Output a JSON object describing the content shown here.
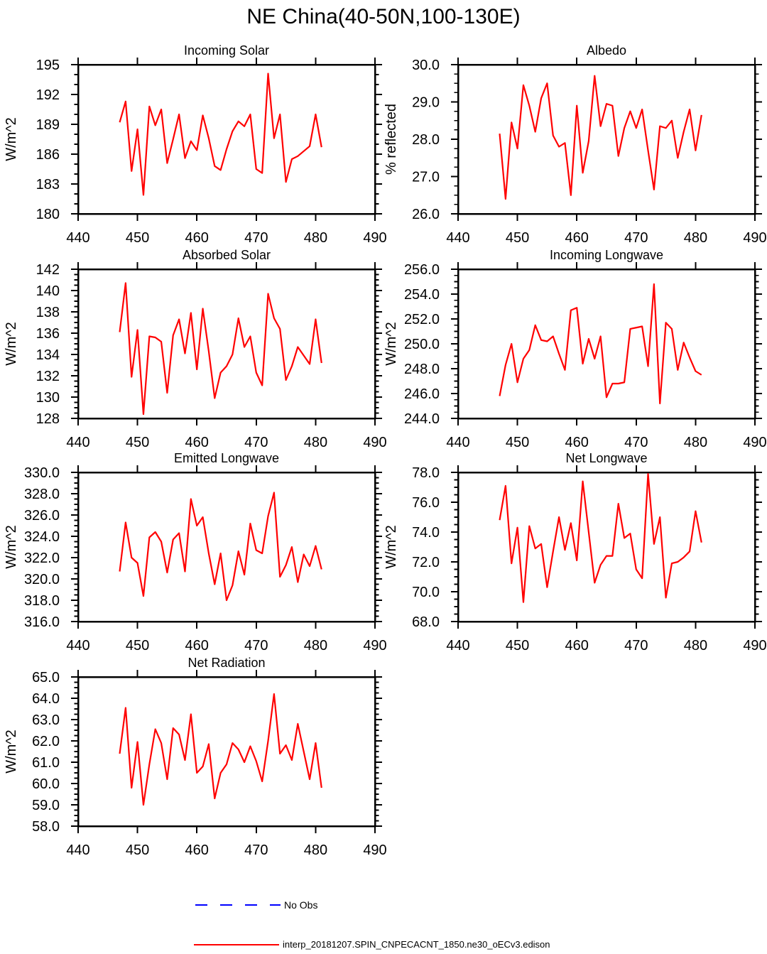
{
  "title": "NE China(40-50N,100-130E)",
  "colors": {
    "series": "#ff0000",
    "no_obs": "#0000ff",
    "axis": "#000000",
    "background": "#ffffff"
  },
  "legend": {
    "items": [
      {
        "label": "No Obs",
        "color": "#0000ff",
        "line_style": "dashed"
      },
      {
        "label": "interp_20181207.SPIN_CNPECACNT_1850.ne30_oECv3.edison",
        "color": "#ff0000",
        "line_style": "solid"
      }
    ]
  },
  "chart_data": [
    {
      "type": "line",
      "title": "Incoming Solar",
      "ylabel": "W/m^2",
      "ylim": [
        180,
        195
      ],
      "ytick_major": 3,
      "ytick_minor": 1,
      "ytick_decimals": 0,
      "xlim": [
        440,
        490
      ],
      "xticks": [
        440,
        450,
        460,
        470,
        480,
        490
      ],
      "x_start": 447,
      "x_step": 1,
      "values": [
        189.2,
        191.3,
        184.3,
        188.5,
        181.9,
        190.8,
        188.9,
        190.5,
        185.1,
        187.5,
        190.0,
        185.6,
        187.3,
        186.4,
        189.9,
        187.6,
        184.8,
        184.4,
        186.5,
        188.3,
        189.3,
        188.8,
        190.0,
        184.5,
        184.1,
        194.1,
        187.6,
        190.0,
        183.2,
        185.5,
        185.8,
        186.3,
        186.8,
        190.0,
        186.7
      ]
    },
    {
      "type": "line",
      "title": "Albedo",
      "ylabel": "% reflected",
      "ylim": [
        26.0,
        30.0
      ],
      "ytick_major": 1.0,
      "ytick_minor": 0.25,
      "ytick_decimals": 1,
      "xlim": [
        440,
        490
      ],
      "xticks": [
        440,
        450,
        460,
        470,
        480,
        490
      ],
      "x_start": 447,
      "x_step": 1,
      "values": [
        28.15,
        26.4,
        28.45,
        27.75,
        29.45,
        28.9,
        28.2,
        29.1,
        29.5,
        28.1,
        27.8,
        27.9,
        26.5,
        28.9,
        27.1,
        27.95,
        29.7,
        28.35,
        28.95,
        28.9,
        27.55,
        28.3,
        28.75,
        28.3,
        28.8,
        27.7,
        26.65,
        28.35,
        28.3,
        28.5,
        27.5,
        28.2,
        28.8,
        27.7,
        28.65
      ]
    },
    {
      "type": "line",
      "title": "Absorbed Solar",
      "ylabel": "W/m^2",
      "ylim": [
        128,
        142
      ],
      "ytick_major": 2,
      "ytick_minor": 0.5,
      "ytick_decimals": 0,
      "xlim": [
        440,
        490
      ],
      "xticks": [
        440,
        450,
        460,
        470,
        480,
        490
      ],
      "x_start": 447,
      "x_step": 1,
      "values": [
        136.1,
        140.7,
        131.9,
        136.3,
        128.4,
        135.7,
        135.6,
        135.2,
        130.4,
        135.8,
        137.3,
        134.1,
        137.9,
        132.6,
        138.3,
        134.3,
        129.9,
        132.3,
        132.9,
        134.0,
        137.4,
        134.7,
        135.7,
        132.3,
        131.1,
        139.7,
        137.4,
        136.4,
        131.6,
        132.9,
        134.7,
        133.9,
        133.1,
        137.3,
        133.2
      ]
    },
    {
      "type": "line",
      "title": "Incoming Longwave",
      "ylabel": "W/m^2",
      "ylim": [
        244.0,
        256.0
      ],
      "ytick_major": 2.0,
      "ytick_minor": 0.5,
      "ytick_decimals": 1,
      "xlim": [
        440,
        490
      ],
      "xticks": [
        440,
        450,
        460,
        470,
        480,
        490
      ],
      "x_start": 447,
      "x_step": 1,
      "values": [
        245.8,
        248.3,
        250.0,
        246.9,
        248.8,
        249.5,
        251.5,
        250.3,
        250.2,
        250.6,
        249.2,
        247.9,
        252.7,
        252.9,
        248.4,
        250.4,
        248.8,
        250.6,
        245.7,
        246.8,
        246.8,
        246.9,
        251.2,
        251.3,
        251.4,
        248.2,
        254.8,
        245.2,
        251.7,
        251.2,
        247.9,
        250.1,
        248.9,
        247.8,
        247.5
      ]
    },
    {
      "type": "line",
      "title": "Emitted Longwave",
      "ylabel": "W/m^2",
      "ylim": [
        316.0,
        330.0
      ],
      "ytick_major": 2.0,
      "ytick_minor": 0.5,
      "ytick_decimals": 1,
      "xlim": [
        440,
        490
      ],
      "xticks": [
        440,
        450,
        460,
        470,
        480,
        490
      ],
      "x_start": 447,
      "x_step": 1,
      "values": [
        320.7,
        325.3,
        322.0,
        321.5,
        318.4,
        323.9,
        324.4,
        323.5,
        320.6,
        323.7,
        324.3,
        320.7,
        327.5,
        325.0,
        325.8,
        322.4,
        319.5,
        322.4,
        318.0,
        319.4,
        322.6,
        320.4,
        325.2,
        322.7,
        322.4,
        325.9,
        328.1,
        320.2,
        321.3,
        323.0,
        319.7,
        322.3,
        321.2,
        323.1,
        320.9
      ]
    },
    {
      "type": "line",
      "title": "Net Longwave",
      "ylabel": "W/m^2",
      "ylim": [
        68.0,
        78.0
      ],
      "ytick_major": 2.0,
      "ytick_minor": 0.5,
      "ytick_decimals": 1,
      "xlim": [
        440,
        490
      ],
      "xticks": [
        440,
        450,
        460,
        470,
        480,
        490
      ],
      "x_start": 447,
      "x_step": 1,
      "values": [
        74.8,
        77.1,
        71.9,
        74.3,
        69.3,
        74.4,
        72.9,
        73.2,
        70.3,
        72.7,
        75.0,
        72.8,
        74.6,
        72.1,
        77.4,
        74.0,
        70.6,
        71.8,
        72.4,
        72.4,
        75.9,
        73.6,
        73.9,
        71.5,
        70.9,
        77.9,
        73.2,
        75.0,
        69.6,
        71.9,
        72.0,
        72.3,
        72.7,
        75.4,
        73.3
      ]
    },
    {
      "type": "line",
      "title": "Net Radiation",
      "ylabel": "W/m^2",
      "ylim": [
        58.0,
        65.0
      ],
      "ytick_major": 1.0,
      "ytick_minor": 0.25,
      "ytick_decimals": 1,
      "xlim": [
        440,
        490
      ],
      "xticks": [
        440,
        450,
        460,
        470,
        480,
        490
      ],
      "x_start": 447,
      "x_step": 1,
      "values": [
        61.4,
        63.55,
        59.8,
        61.95,
        59.0,
        60.9,
        62.55,
        61.9,
        60.2,
        62.6,
        62.3,
        61.1,
        63.25,
        60.5,
        60.8,
        61.85,
        59.3,
        60.5,
        60.9,
        61.9,
        61.6,
        61.0,
        61.75,
        61.05,
        60.1,
        62.0,
        64.2,
        61.4,
        61.8,
        61.1,
        62.8,
        61.5,
        60.2,
        61.9,
        59.8
      ]
    }
  ]
}
